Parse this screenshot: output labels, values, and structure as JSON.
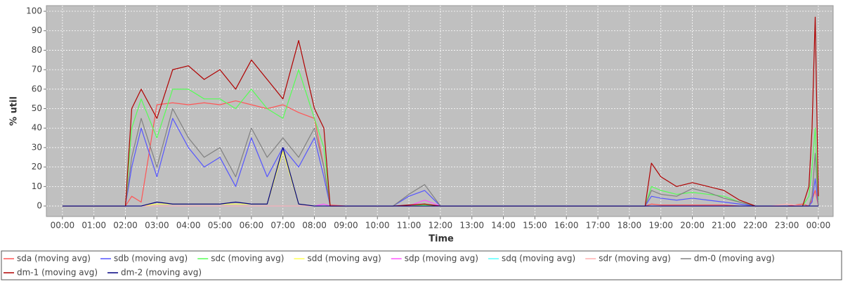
{
  "chart_data": {
    "type": "line",
    "xlabel": "Time",
    "ylabel": "% util",
    "x": [
      0,
      0.5,
      1,
      1.5,
      2,
      2.2,
      2.5,
      3,
      3.5,
      4,
      4.5,
      5,
      5.5,
      6,
      6.5,
      7,
      7.5,
      8,
      8.3,
      8.5,
      9,
      9.5,
      10,
      10.5,
      11,
      11.5,
      12,
      12.5,
      13,
      13.5,
      14,
      14.5,
      15,
      15.5,
      16,
      16.5,
      17,
      17.5,
      18,
      18.5,
      18.7,
      19,
      19.5,
      20,
      20.5,
      21,
      21.5,
      22,
      22.5,
      23,
      23.5,
      23.7,
      23.8,
      23.9,
      24
    ],
    "xlim": [
      -0.51,
      24.47
    ],
    "xticks": [
      {
        "value": 0,
        "label": "00:00"
      },
      {
        "value": 1,
        "label": "01:00"
      },
      {
        "value": 2,
        "label": "02:00"
      },
      {
        "value": 3,
        "label": "03:00"
      },
      {
        "value": 4,
        "label": "04:00"
      },
      {
        "value": 5,
        "label": "05:00"
      },
      {
        "value": 6,
        "label": "06:00"
      },
      {
        "value": 7,
        "label": "07:00"
      },
      {
        "value": 8,
        "label": "08:00"
      },
      {
        "value": 9,
        "label": "09:00"
      },
      {
        "value": 10,
        "label": "10:00"
      },
      {
        "value": 11,
        "label": "11:00"
      },
      {
        "value": 12,
        "label": "12:00"
      },
      {
        "value": 13,
        "label": "13:00"
      },
      {
        "value": 14,
        "label": "14:00"
      },
      {
        "value": 15,
        "label": "15:00"
      },
      {
        "value": 16,
        "label": "16:00"
      },
      {
        "value": 17,
        "label": "17:00"
      },
      {
        "value": 18,
        "label": "18:00"
      },
      {
        "value": 19,
        "label": "19:00"
      },
      {
        "value": 20,
        "label": "20:00"
      },
      {
        "value": 21,
        "label": "21:00"
      },
      {
        "value": 22,
        "label": "22:00"
      },
      {
        "value": 23,
        "label": "23:00"
      },
      {
        "value": 24,
        "label": "00:00"
      }
    ],
    "ylim": [
      -5.4,
      102.9
    ],
    "yticks": [
      0,
      10,
      20,
      30,
      40,
      50,
      60,
      70,
      80,
      90,
      100
    ],
    "grid": true,
    "series": [
      {
        "name": "sda (moving avg)",
        "color": "#ff5555",
        "values": [
          0,
          0,
          0,
          0,
          0,
          5,
          2,
          52,
          53,
          52,
          53,
          52,
          54,
          52,
          50,
          52,
          48,
          45,
          20,
          0.5,
          0,
          0,
          0,
          0,
          0,
          0,
          0,
          0,
          0,
          0,
          0,
          0,
          0,
          0,
          0,
          0,
          0,
          0,
          0,
          0,
          1,
          0.5,
          0.5,
          0.5,
          0.5,
          0.5,
          0,
          0,
          0,
          0,
          1,
          0,
          3,
          8,
          0
        ]
      },
      {
        "name": "sdb (moving avg)",
        "color": "#5555ff",
        "values": [
          0,
          0,
          0,
          0,
          0,
          20,
          40,
          15,
          45,
          30,
          20,
          25,
          10,
          35,
          15,
          30,
          20,
          35,
          15,
          0,
          0,
          0,
          0,
          0,
          5,
          8,
          0,
          0,
          0,
          0,
          0,
          0,
          0,
          0,
          0,
          0,
          0,
          0,
          0,
          0,
          5,
          4,
          3,
          4,
          3,
          2,
          1,
          0,
          0,
          0,
          0,
          0,
          2,
          14,
          0
        ]
      },
      {
        "name": "sdc (moving avg)",
        "color": "#55ff55",
        "values": [
          0,
          0,
          0,
          0,
          0,
          40,
          55,
          35,
          60,
          60,
          55,
          55,
          50,
          60,
          50,
          45,
          70,
          45,
          30,
          0,
          0,
          0,
          0,
          0,
          0,
          0.5,
          0,
          0,
          0,
          0,
          0,
          0,
          0,
          0,
          0,
          0,
          0,
          0,
          0,
          0,
          10,
          8,
          6,
          7,
          6,
          5,
          2,
          0,
          0,
          0,
          0,
          5,
          20,
          40,
          3
        ]
      },
      {
        "name": "sdd (moving avg)",
        "color": "#ffff55",
        "values": [
          0,
          0,
          0,
          0,
          0,
          0,
          0,
          1,
          1,
          1,
          1,
          1,
          1,
          1,
          1,
          28,
          1,
          0,
          0,
          0,
          0,
          0,
          0,
          0,
          0,
          0,
          0,
          0,
          0,
          0,
          0,
          0,
          0,
          0,
          0,
          0,
          0,
          0,
          0,
          0,
          0,
          0,
          0,
          0,
          0,
          0,
          0,
          0,
          0,
          0,
          0,
          0,
          0,
          0,
          0
        ]
      },
      {
        "name": "sdp (moving avg)",
        "color": "#ff55ff",
        "values": [
          0,
          0,
          0,
          0,
          0,
          0,
          0,
          0,
          0,
          0,
          0,
          0,
          0,
          0,
          0,
          0,
          0,
          0,
          1,
          0,
          0,
          0,
          0,
          0,
          0,
          3,
          0,
          0,
          0,
          0,
          0,
          0,
          0,
          0,
          0,
          0,
          0,
          0,
          0,
          0,
          0,
          0,
          0,
          0,
          0,
          0,
          0,
          0,
          0,
          0,
          0,
          0,
          0,
          0,
          0
        ]
      },
      {
        "name": "sdq (moving avg)",
        "color": "#55ffff",
        "values": [
          0,
          0,
          0,
          0,
          0,
          0,
          0,
          0,
          0,
          0,
          0,
          0,
          0,
          0,
          0,
          0,
          0,
          0,
          0,
          0,
          0,
          0,
          0,
          0,
          0,
          0,
          0,
          0,
          0,
          0,
          0,
          0,
          0,
          0,
          0,
          0,
          0,
          0,
          0,
          0,
          0,
          0,
          0,
          0,
          0,
          0,
          0,
          0,
          0,
          0,
          0,
          0,
          0,
          0,
          0
        ]
      },
      {
        "name": "sdr (moving avg)",
        "color": "#ffafaf",
        "values": [
          0,
          0,
          0,
          0,
          0,
          0,
          0,
          0,
          0,
          0,
          0,
          0,
          0,
          0,
          0,
          0,
          0,
          0,
          0,
          0,
          0,
          0,
          0,
          0,
          0,
          0,
          0,
          0,
          0,
          0,
          0,
          0,
          0,
          0,
          0,
          0,
          0,
          0,
          0,
          0,
          0,
          0,
          0,
          0,
          0,
          0,
          0,
          0,
          0,
          1,
          0,
          0,
          0,
          0,
          0
        ]
      },
      {
        "name": "dm-0 (moving avg)",
        "color": "#808080",
        "values": [
          0,
          0,
          0,
          0,
          0,
          25,
          45,
          20,
          50,
          35,
          25,
          30,
          15,
          40,
          25,
          35,
          25,
          40,
          20,
          0,
          0,
          0,
          0,
          0,
          6,
          11,
          0,
          0,
          0,
          0,
          0,
          0,
          0,
          0,
          0,
          0,
          0,
          0,
          0,
          0,
          8,
          6,
          5,
          9,
          7,
          4,
          2,
          0,
          0,
          0,
          0,
          0,
          5,
          27,
          0
        ]
      },
      {
        "name": "dm-1 (moving avg)",
        "color": "#b00000",
        "values": [
          0,
          0,
          0,
          0,
          0,
          50,
          60,
          45,
          70,
          72,
          65,
          70,
          60,
          75,
          65,
          55,
          85,
          50,
          40,
          0,
          0,
          0,
          0,
          0,
          0.5,
          1,
          0,
          0,
          0,
          0,
          0,
          0,
          0,
          0,
          0,
          0,
          0,
          0,
          0,
          0,
          22,
          15,
          10,
          12,
          10,
          8,
          3,
          0,
          0,
          0,
          0,
          10,
          40,
          97,
          5
        ]
      },
      {
        "name": "dm-2 (moving avg)",
        "color": "#000080",
        "values": [
          0,
          0,
          0,
          0,
          0,
          0,
          0,
          2,
          1,
          1,
          1,
          1,
          2,
          1,
          1,
          30,
          1,
          0,
          0,
          0,
          0,
          0,
          0,
          0,
          0,
          0,
          0,
          0,
          0,
          0,
          0,
          0,
          0,
          0,
          0,
          0,
          0,
          0,
          0,
          0,
          0,
          0,
          0,
          0,
          0,
          0,
          0,
          0,
          0,
          0,
          0,
          0,
          0,
          0,
          0
        ]
      }
    ]
  }
}
